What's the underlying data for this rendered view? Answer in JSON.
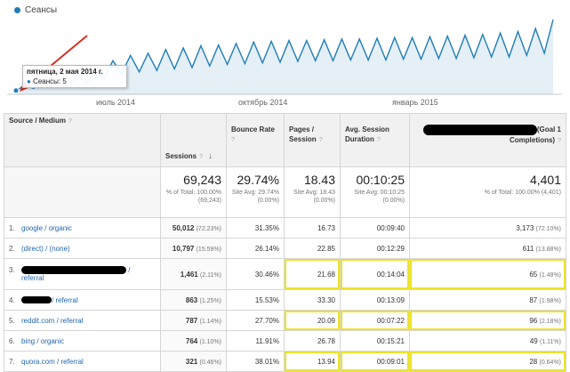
{
  "chart": {
    "legend": "Сеансы",
    "x_labels": [
      "июль 2014",
      "октябрь 2014",
      "январь 2015"
    ],
    "tooltip_date": "пятница, 2 мая 2014 г.",
    "tooltip_value": "Сеансы: 5"
  },
  "chart_data": {
    "type": "area",
    "series": [
      {
        "name": "Сеансы",
        "values": [
          5,
          12,
          8,
          18,
          10,
          22,
          14,
          25,
          15,
          30,
          22,
          45,
          28,
          52,
          30,
          55,
          32,
          60,
          34,
          62,
          36,
          65,
          38,
          66,
          40,
          68,
          41,
          70,
          42,
          71,
          43,
          72,
          44,
          72,
          45,
          73,
          45,
          74,
          46,
          74,
          46,
          75,
          46,
          76,
          47,
          76,
          47,
          77,
          48,
          78,
          48,
          79,
          49,
          80,
          50,
          82,
          50,
          84,
          52,
          88,
          55,
          100
        ]
      }
    ],
    "x_labels": [
      "июль 2014",
      "октябрь 2014",
      "январь 2015"
    ],
    "legend_position": "top-left",
    "color": "#1f7db8"
  },
  "table": {
    "headers": {
      "source": "Source / Medium",
      "sessions": "Sessions",
      "bounce": "Bounce Rate",
      "pages": "Pages / Session",
      "duration": "Avg. Session Duration",
      "goal": "(Goal 1 Completions)"
    },
    "totals": {
      "sessions": "69,243",
      "sessions_sub": "% of Total: 100.00% (69,243)",
      "bounce": "29.74%",
      "bounce_sub": "Site Avg: 29.74% (0.00%)",
      "pages": "18.43",
      "pages_sub": "Site Avg: 18.43 (0.00%)",
      "duration": "00:10:25",
      "duration_sub": "Site Avg: 00:10:25 (0.00%)",
      "goal": "4,401",
      "goal_sub": "% of Total: 100.00% (4,401)"
    },
    "rows": [
      {
        "num": "1.",
        "source": "google / organic",
        "sessions": "50,012",
        "sessions_pct": "(72.23%)",
        "bounce": "31.35%",
        "pages": "16.73",
        "duration": "00:09:40",
        "goal": "3,173",
        "goal_pct": "(72.10%)"
      },
      {
        "num": "2.",
        "source": "(direct) / (none)",
        "sessions": "10,797",
        "sessions_pct": "(15.59%)",
        "bounce": "26.14%",
        "pages": "22.85",
        "duration": "00:12:29",
        "goal": "611",
        "goal_pct": "(13.88%)"
      },
      {
        "num": "3.",
        "source": "/",
        "source2": "referral",
        "sessions": "1,461",
        "sessions_pct": "(2.11%)",
        "bounce": "30.46%",
        "pages": "21.68",
        "duration": "00:14:04",
        "goal": "65",
        "goal_pct": "(1.48%)"
      },
      {
        "num": "4.",
        "source": "/ referral",
        "sessions": "863",
        "sessions_pct": "(1.25%)",
        "bounce": "15.53%",
        "pages": "33.30",
        "duration": "00:13:09",
        "goal": "87",
        "goal_pct": "(1.98%)"
      },
      {
        "num": "5.",
        "source": "reddit.com / referral",
        "sessions": "787",
        "sessions_pct": "(1.14%)",
        "bounce": "27.70%",
        "pages": "20.09",
        "duration": "00:07:22",
        "goal": "96",
        "goal_pct": "(2.18%)"
      },
      {
        "num": "6.",
        "source": "bing / organic",
        "sessions": "764",
        "sessions_pct": "(1.10%)",
        "bounce": "11.91%",
        "pages": "26.78",
        "duration": "00:15:21",
        "goal": "49",
        "goal_pct": "(1.11%)"
      },
      {
        "num": "7.",
        "source": "quora.com / referral",
        "sessions": "321",
        "sessions_pct": "(0.46%)",
        "bounce": "38.01%",
        "pages": "13.94",
        "duration": "00:09:01",
        "goal": "28",
        "goal_pct": "(0.64%)"
      }
    ]
  },
  "colors": {
    "series": "#1f7db8",
    "highlight": "#ece22e",
    "annotation_arrow": "#d9261c"
  }
}
